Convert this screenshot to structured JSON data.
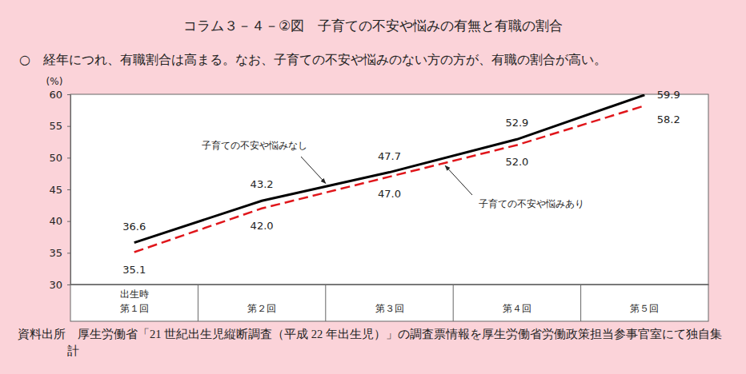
{
  "chart_data": {
    "type": "line",
    "title": "コラム３－４－②図　子育ての不安や悩みの有無と有職の割合",
    "subtitle": "○　経年につれ、有職割合は高まる。なお、子育ての不安や悩みのない方の方が、有職の割合が高い。",
    "ylabel": "(%)",
    "annotations": [
      "出生時"
    ],
    "source": "資料出所　厚生労働省「21 世紀出生児縦断調査（平成 22 年出生児）」の調査票情報を厚生労働省労働政策担当参事官室にて独自集計",
    "categories": [
      "第１回",
      "第２回",
      "第３回",
      "第４回",
      "第５回"
    ],
    "series": [
      {
        "name": "子育ての不安や悩みなし",
        "color": "#000000",
        "line_style": "solid",
        "values": [
          36.6,
          43.2,
          47.7,
          52.9,
          59.9
        ],
        "value_labels": [
          "36.6",
          "43.2",
          "47.7",
          "52.9",
          "59.9"
        ]
      },
      {
        "name": "子育ての不安や悩みあり",
        "color": "#e0161b",
        "line_style": "dashed",
        "values": [
          35.1,
          42.0,
          47.0,
          52.0,
          58.2
        ],
        "value_labels": [
          "35.1",
          "42.0",
          "47.0",
          "52.0",
          "58.2"
        ]
      }
    ],
    "ylim": [
      30,
      60
    ],
    "yticks": [
      30,
      35,
      40,
      45,
      50,
      55,
      60
    ],
    "grid": false,
    "data_labels": true
  }
}
